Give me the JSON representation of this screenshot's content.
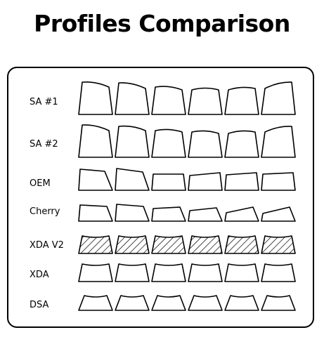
{
  "title": "Profiles Comparison",
  "colors": {
    "stroke": "#000000",
    "fill": "#ffffff",
    "background": "#ffffff"
  },
  "rows": [
    {
      "label": "SA #1",
      "profile": "sa1"
    },
    {
      "label": "SA #2",
      "profile": "sa2"
    },
    {
      "label": "OEM",
      "profile": "oem"
    },
    {
      "label": "Cherry",
      "profile": "cherry"
    },
    {
      "label": "XDA V2",
      "profile": "xdav2",
      "pattern": "hatched"
    },
    {
      "label": "XDA",
      "profile": "xda"
    },
    {
      "label": "DSA",
      "profile": "dsa"
    }
  ],
  "keys_per_row": 6
}
